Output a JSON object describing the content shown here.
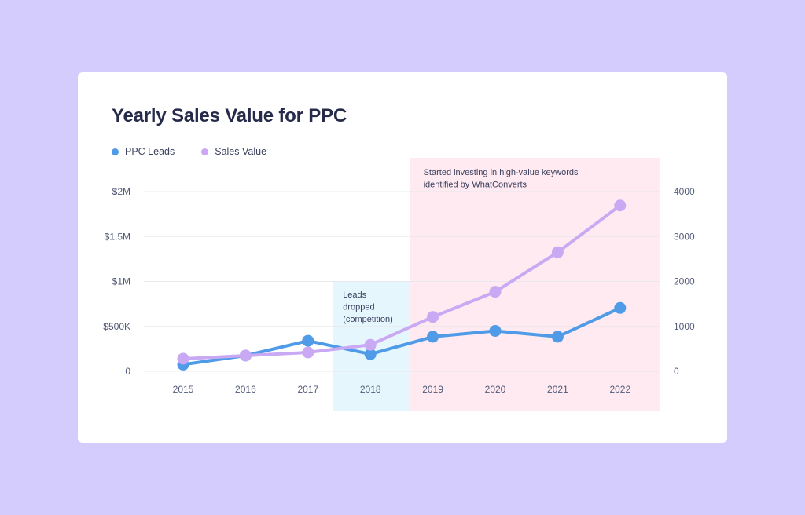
{
  "chart_data": {
    "type": "line",
    "title": "Yearly Sales Value for PPC",
    "categories": [
      "2015",
      "2016",
      "2017",
      "2018",
      "2019",
      "2020",
      "2021",
      "2022"
    ],
    "series": [
      {
        "name": "PPC Leads",
        "axis": "right",
        "color": "#4f9be8",
        "values": [
          150,
          350,
          680,
          380,
          770,
          900,
          770,
          1410
        ]
      },
      {
        "name": "Sales Value",
        "axis": "left",
        "color": "#c9a9f3",
        "values": [
          140000,
          175000,
          210000,
          295000,
          605000,
          885000,
          1325000,
          1845000
        ]
      }
    ],
    "y_left": {
      "ticks": [
        "0",
        "$500K",
        "$1M",
        "$1.5M",
        "$2M"
      ],
      "range": [
        0,
        2000000
      ]
    },
    "y_right": {
      "ticks": [
        "0",
        "1000",
        "2000",
        "3000",
        "4000"
      ],
      "range": [
        0,
        4000
      ]
    },
    "grid": true,
    "legend_position": "top-left",
    "annotations": [
      {
        "text_lines": [
          "Leads",
          "dropped",
          "(competition)"
        ],
        "color": "#e5f6fd",
        "from_index": 3,
        "to_index": 3
      },
      {
        "text_lines": [
          "Started investing in high-value keywords",
          "identified by WhatConverts"
        ],
        "color": "#feeaf0",
        "from_index": 4,
        "to_index": 7
      }
    ]
  },
  "colors": {
    "background": "#d3ccfd",
    "card": "#ffffff",
    "title": "#262b4a",
    "axis_text": "#525a78"
  }
}
